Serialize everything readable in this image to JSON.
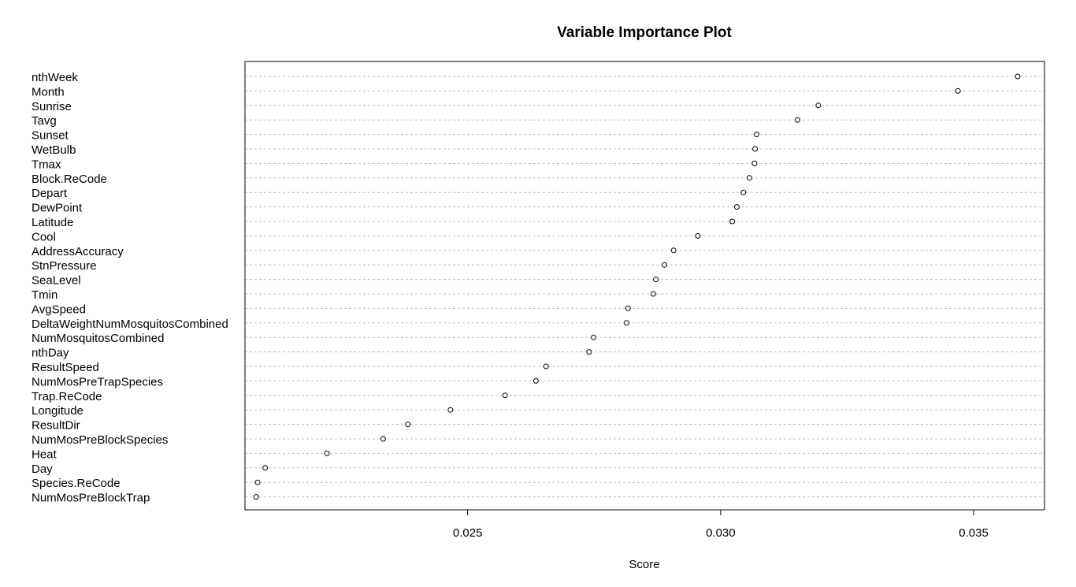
{
  "chart_data": {
    "type": "scatter",
    "subtype": "dotchart",
    "title": "Variable Importance Plot",
    "xlabel": "Score",
    "ylabel": "",
    "xlim": [
      0.0206,
      0.0364
    ],
    "xticks": [
      "0.025",
      "0.030",
      "0.035"
    ],
    "grid": "dotted horizontal lines per variable",
    "categories": [
      "nthWeek",
      "Month",
      "Sunrise",
      "Tavg",
      "Sunset",
      "WetBulb",
      "Tmax",
      "Block.ReCode",
      "Depart",
      "DewPoint",
      "Latitude",
      "Cool",
      "AddressAccuracy",
      "StnPressure",
      "SeaLevel",
      "Tmin",
      "AvgSpeed",
      "DeltaWeightNumMosquitosCombined",
      "NumMosquitosCombined",
      "nthDay",
      "ResultSpeed",
      "NumMosPreTrapSpecies",
      "Trap.ReCode",
      "Longitude",
      "ResultDir",
      "NumMosPreBlockSpecies",
      "Heat",
      "Day",
      "Species.ReCode",
      "NumMosPreBlockTrap"
    ],
    "values": [
      0.03587,
      0.03469,
      0.03193,
      0.03152,
      0.03071,
      0.03068,
      0.03067,
      0.03057,
      0.03045,
      0.03032,
      0.03023,
      0.02955,
      0.02907,
      0.02889,
      0.02872,
      0.02867,
      0.02817,
      0.02814,
      0.02749,
      0.0274,
      0.02655,
      0.02635,
      0.02574,
      0.02466,
      0.02382,
      0.02333,
      0.02222,
      0.021,
      0.02085,
      0.02082
    ]
  }
}
